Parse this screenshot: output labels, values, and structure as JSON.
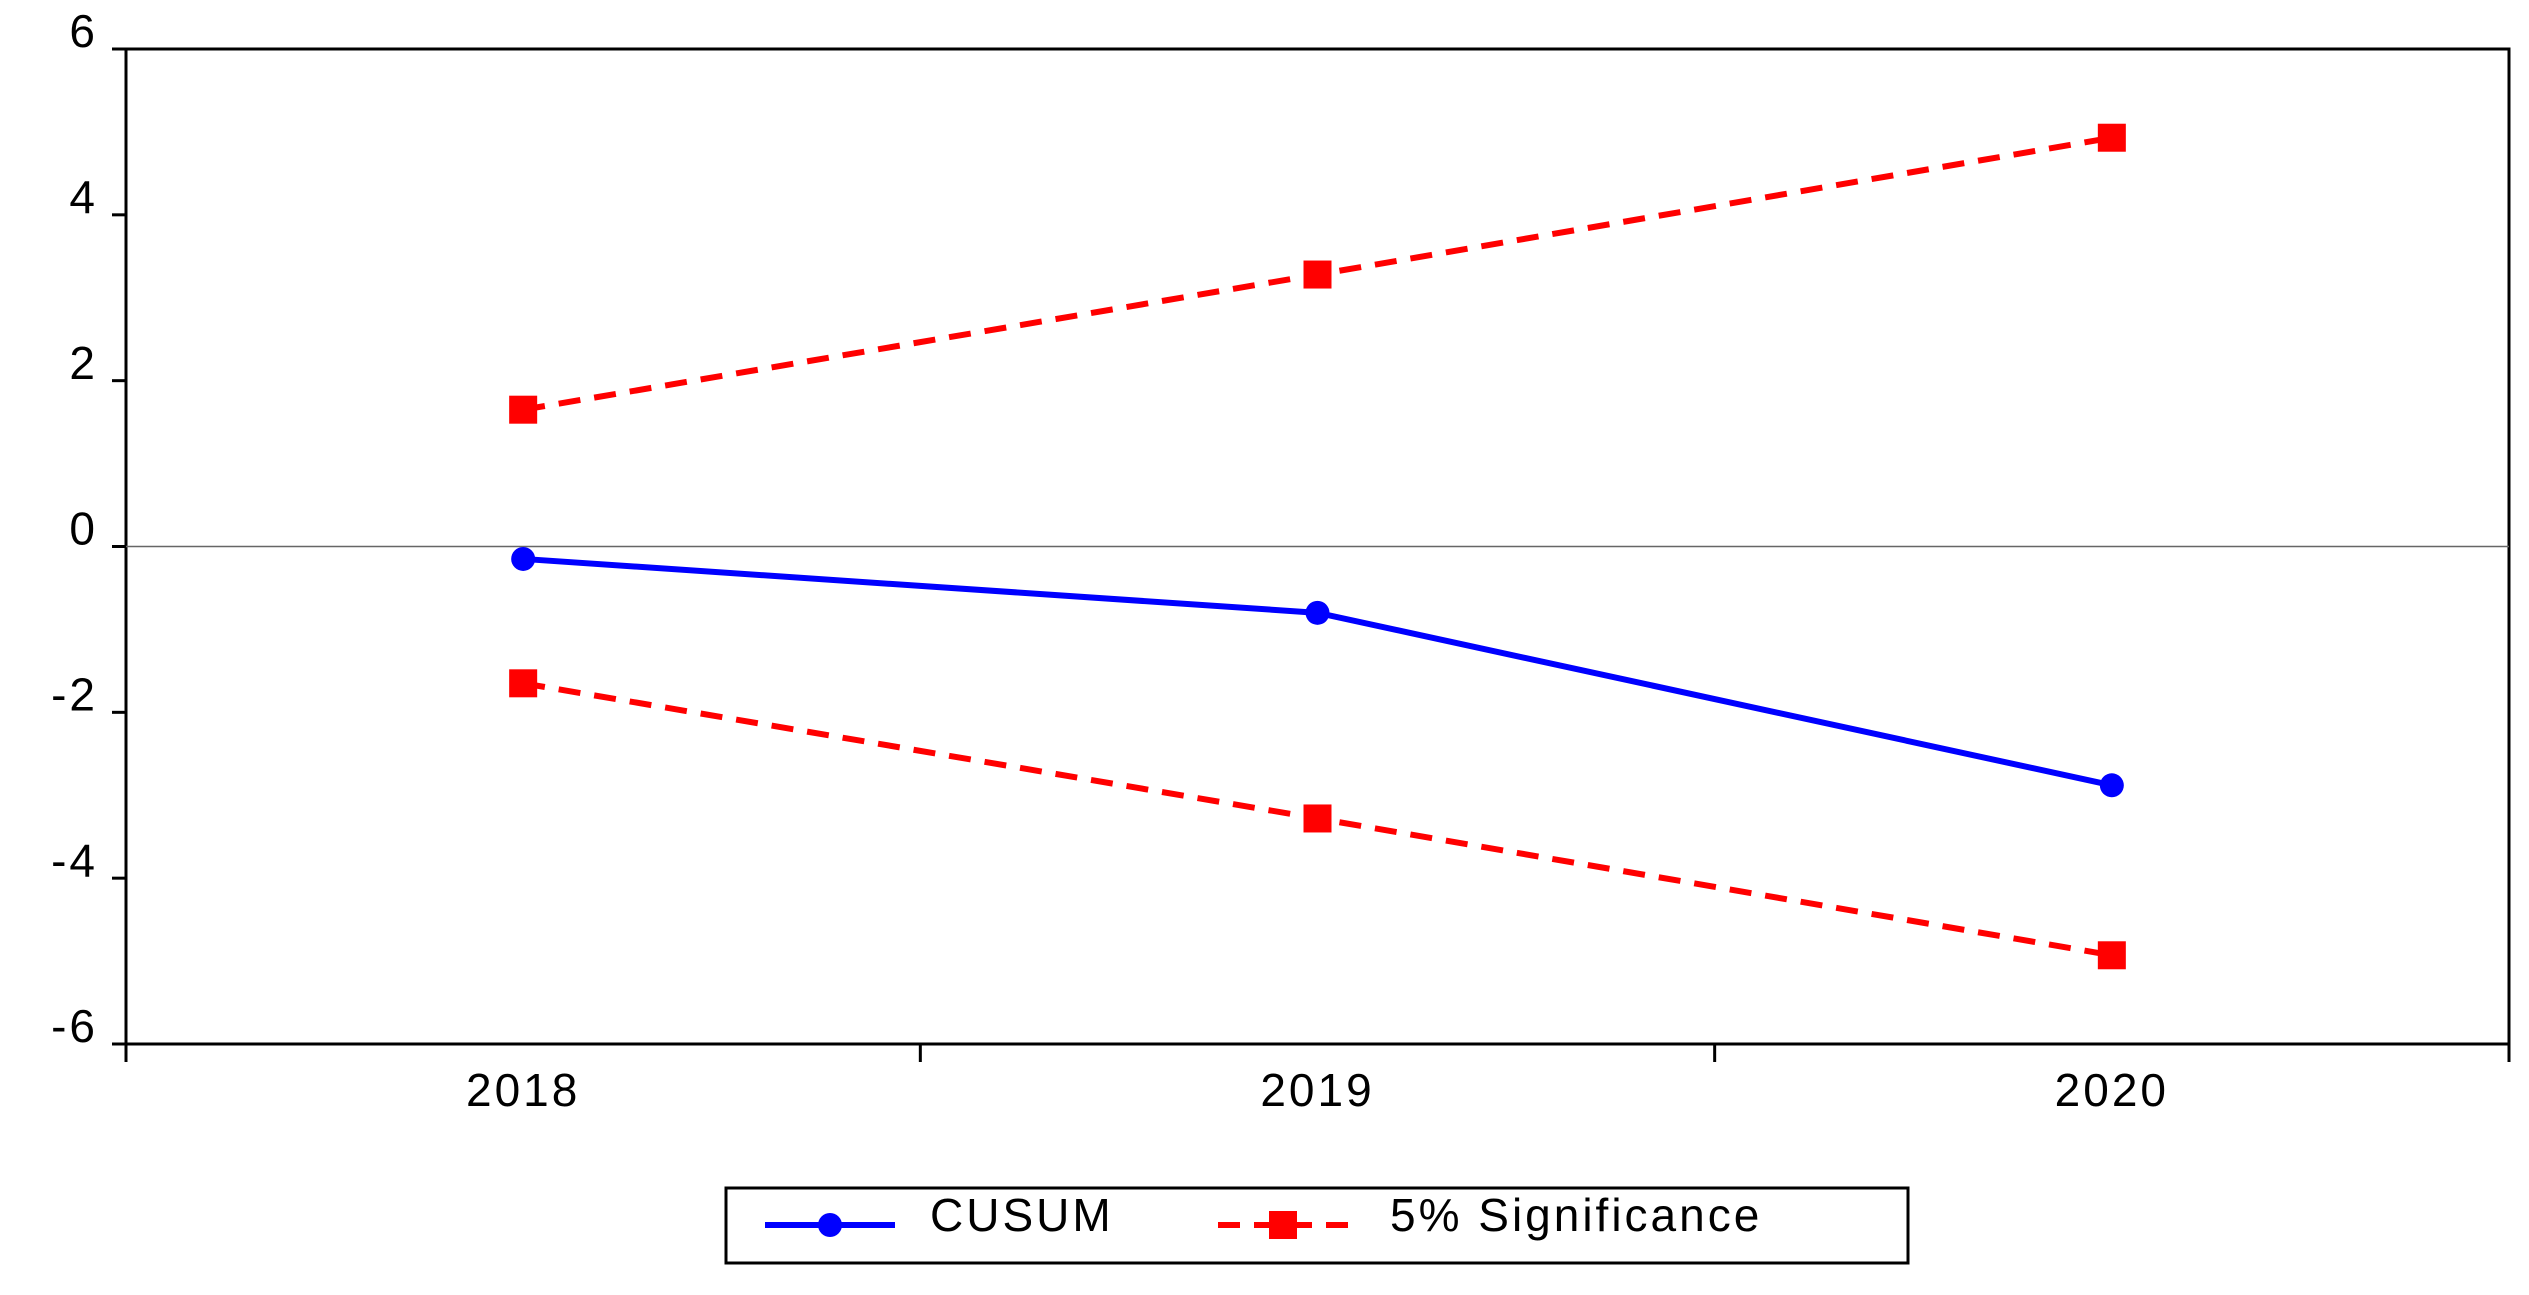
{
  "chart_data": {
    "type": "line",
    "categories": [
      "2018",
      "2019",
      "2020"
    ],
    "series": [
      {
        "name": "CUSUM",
        "color": "#0000ff",
        "values": [
          -0.15,
          -0.8,
          -2.88
        ]
      },
      {
        "name": "5% Significance",
        "color": "#ff0000",
        "values": [
          1.65,
          3.28,
          4.93
        ],
        "lower": [
          -1.65,
          -3.28,
          -4.93
        ]
      }
    ],
    "ylim": [
      -6,
      6
    ],
    "yticks": [
      -6,
      -4,
      -2,
      0,
      2,
      4,
      6
    ],
    "zero_line": true
  }
}
